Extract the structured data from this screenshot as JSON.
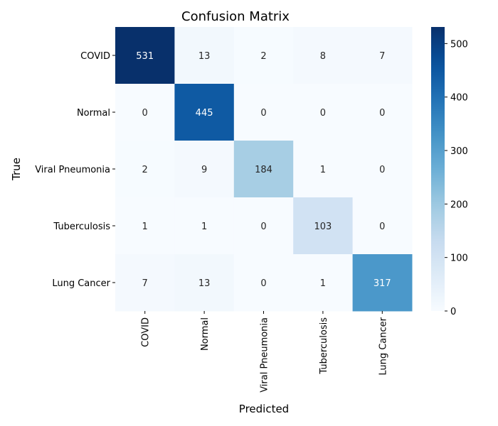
{
  "chart_data": {
    "type": "heatmap",
    "title": "Confusion Matrix",
    "xlabel": "Predicted",
    "ylabel": "True",
    "x_categories": [
      "COVID",
      "Normal",
      "Viral Pneumonia",
      "Tuberculosis",
      "Lung Cancer"
    ],
    "y_categories": [
      "COVID",
      "Normal",
      "Viral Pneumonia",
      "Tuberculosis",
      "Lung Cancer"
    ],
    "values": [
      [
        531,
        13,
        2,
        8,
        7
      ],
      [
        0,
        445,
        0,
        0,
        0
      ],
      [
        2,
        9,
        184,
        1,
        0
      ],
      [
        1,
        1,
        0,
        103,
        0
      ],
      [
        7,
        13,
        0,
        1,
        317
      ]
    ],
    "colorbar": {
      "min": 0,
      "max": 531,
      "ticks": [
        0,
        100,
        200,
        300,
        400,
        500
      ],
      "colormap": "Blues"
    },
    "grid": false
  }
}
